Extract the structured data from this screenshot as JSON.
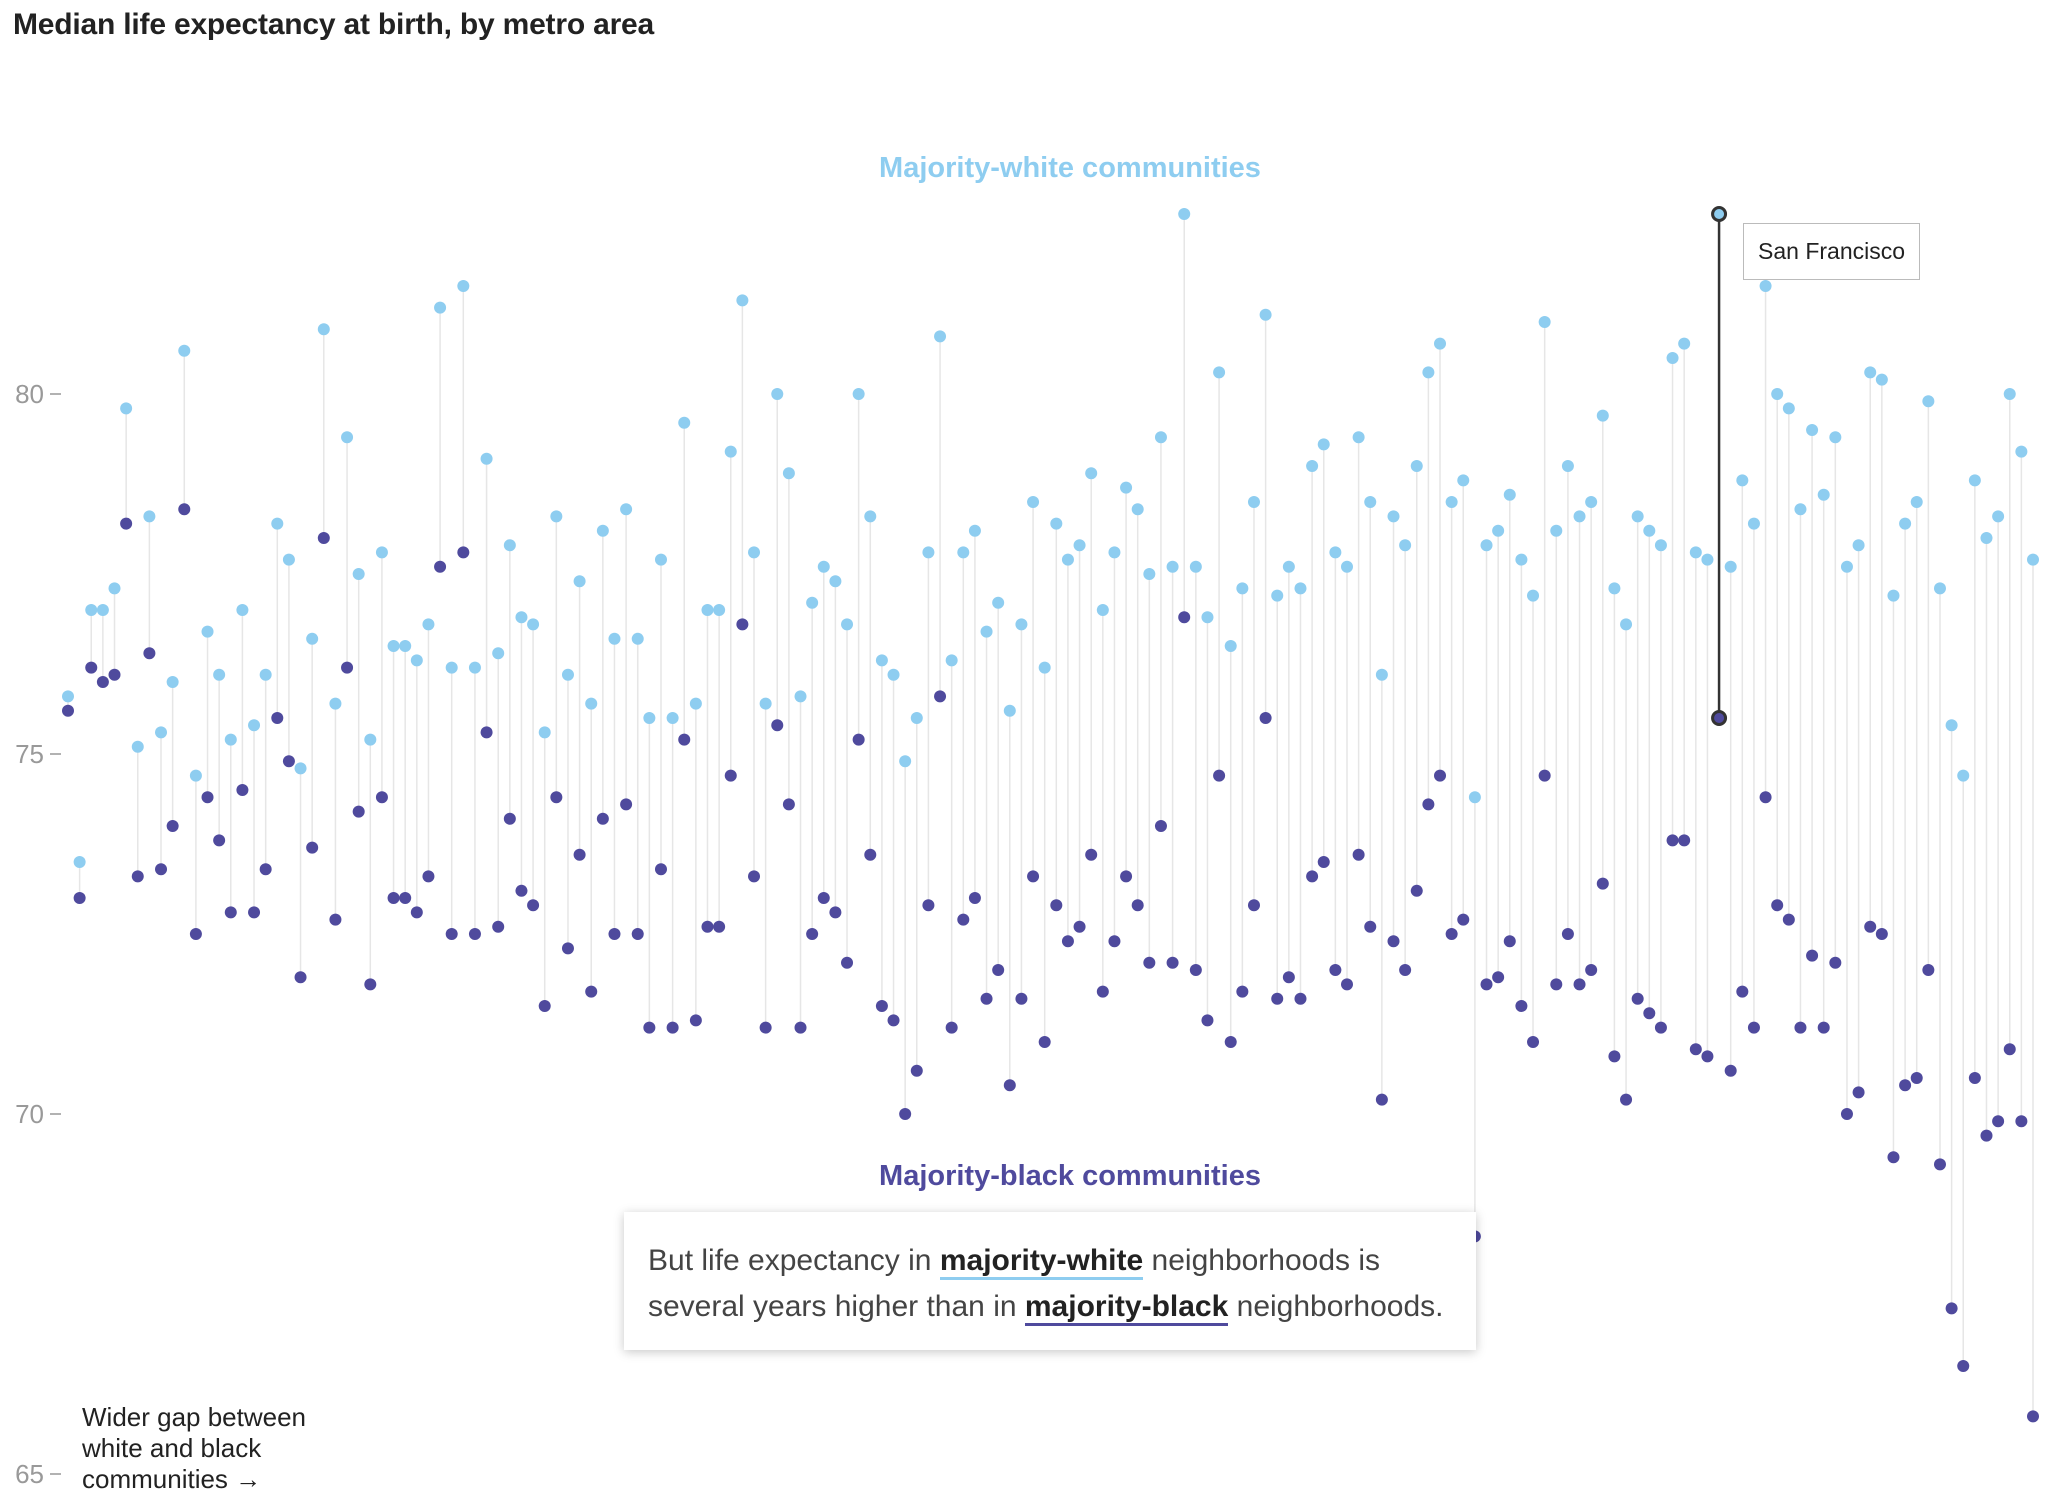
{
  "title": "Median life expectancy at birth, by metro area",
  "labels": {
    "white_group": "Majority-white communities",
    "black_group": "Majority-black communities"
  },
  "callout": {
    "part1": "But life expectancy in ",
    "highlight_white": "majority-white",
    "part2": " neighborhoods is several years higher than in ",
    "highlight_black": "majority-black",
    "part3": " neighborhoods."
  },
  "note": "Wider gap between white and black communities →",
  "tooltip": {
    "label": "San Francisco"
  },
  "colors": {
    "white_series": "#8ecdf0",
    "black_series": "#4f4a9d",
    "connector": "#e6e6e6",
    "highlight_stroke": "#333333",
    "tick": "#999999"
  },
  "chart_data": {
    "type": "scatter",
    "title": "Median life expectancy at birth, by metro area",
    "xlabel": "",
    "ylabel": "",
    "ylim": [
      65,
      84
    ],
    "yticks": [
      65,
      70,
      75,
      80
    ],
    "grid": false,
    "highlight": {
      "name": "San Francisco",
      "index": 142
    },
    "series": [
      {
        "name": "Majority-white communities",
        "values": [
          75.8,
          73.5,
          77.0,
          77.0,
          77.3,
          79.8,
          75.1,
          78.3,
          75.3,
          76.0,
          80.6,
          74.7,
          76.7,
          76.1,
          75.2,
          77.0,
          75.4,
          76.1,
          78.2,
          77.7,
          74.8,
          76.6,
          80.9,
          75.7,
          79.4,
          77.5,
          75.2,
          77.8,
          76.5,
          76.5,
          76.3,
          76.8,
          81.2,
          76.2,
          81.5,
          76.2,
          79.1,
          76.4,
          77.9,
          76.9,
          76.8,
          75.3,
          78.3,
          76.1,
          77.4,
          75.7,
          78.1,
          76.6,
          78.4,
          76.6,
          75.5,
          77.7,
          75.5,
          79.6,
          75.7,
          77.0,
          77.0,
          79.2,
          81.3,
          77.8,
          75.7,
          80.0,
          78.9,
          75.8,
          77.1,
          77.6,
          77.4,
          76.8,
          80.0,
          78.3,
          76.3,
          76.1,
          74.9,
          75.5,
          77.8,
          80.8,
          76.3,
          77.8,
          78.1,
          76.7,
          77.1,
          75.6,
          76.8,
          78.5,
          76.2,
          78.2,
          77.7,
          77.9,
          78.9,
          77.0,
          77.8,
          78.7,
          78.4,
          77.5,
          79.4,
          77.6,
          82.5,
          77.6,
          76.9,
          80.3,
          76.5,
          77.3,
          78.5,
          81.1,
          77.2,
          77.6,
          77.3,
          79.0,
          79.3,
          77.8,
          77.6,
          79.4,
          78.5,
          76.1,
          78.3,
          77.9,
          79.0,
          80.3,
          80.7,
          78.5,
          78.8,
          74.4,
          77.9,
          78.1,
          78.6,
          77.7,
          77.2,
          81.0,
          78.1,
          79.0,
          78.3,
          78.5,
          79.7,
          77.3,
          76.8,
          78.3,
          78.1,
          77.9,
          80.5,
          80.7,
          77.8,
          77.7,
          82.5,
          77.6,
          78.8,
          78.2,
          81.5,
          80.0,
          79.8,
          78.4,
          79.5,
          78.6,
          79.4,
          77.6,
          77.9,
          80.3,
          80.2,
          77.2,
          78.2,
          78.5,
          79.9,
          77.3,
          75.4,
          74.7,
          78.8,
          78.0,
          78.3,
          80.0,
          79.2,
          77.7
        ]
      },
      {
        "name": "Majority-black communities",
        "values": [
          75.6,
          73.0,
          76.2,
          76.0,
          76.1,
          78.2,
          73.3,
          76.4,
          73.4,
          74.0,
          78.4,
          72.5,
          74.4,
          73.8,
          72.8,
          74.5,
          72.8,
          73.4,
          75.5,
          74.9,
          71.9,
          73.7,
          78.0,
          72.7,
          76.2,
          74.2,
          71.8,
          74.4,
          73.0,
          73.0,
          72.8,
          73.3,
          77.6,
          72.5,
          77.8,
          72.5,
          75.3,
          72.6,
          74.1,
          73.1,
          72.9,
          71.5,
          74.4,
          72.3,
          73.6,
          71.7,
          74.1,
          72.5,
          74.3,
          72.5,
          71.2,
          73.4,
          71.2,
          75.2,
          71.3,
          72.6,
          72.6,
          74.7,
          76.8,
          73.3,
          71.2,
          75.4,
          74.3,
          71.2,
          72.5,
          73.0,
          72.8,
          72.1,
          75.2,
          73.6,
          71.5,
          71.3,
          70.0,
          70.6,
          72.9,
          75.8,
          71.2,
          72.7,
          73.0,
          71.6,
          72.0,
          70.4,
          71.6,
          73.3,
          71.0,
          72.9,
          72.4,
          72.6,
          73.6,
          71.7,
          72.4,
          73.3,
          72.9,
          72.1,
          74.0,
          72.1,
          76.9,
          72.0,
          71.3,
          74.7,
          71.0,
          71.7,
          72.9,
          75.5,
          71.6,
          71.9,
          71.6,
          73.3,
          73.5,
          72.0,
          71.8,
          73.6,
          72.6,
          70.2,
          72.4,
          72.0,
          73.1,
          74.3,
          74.7,
          72.5,
          72.7,
          68.3,
          71.8,
          71.9,
          72.4,
          71.5,
          71.0,
          74.7,
          71.8,
          72.5,
          71.8,
          72.0,
          73.2,
          70.8,
          70.2,
          71.6,
          71.4,
          71.2,
          73.8,
          73.8,
          70.9,
          70.8,
          75.5,
          70.6,
          71.7,
          71.2,
          74.4,
          72.9,
          72.7,
          71.2,
          72.2,
          71.2,
          72.1,
          70.0,
          70.3,
          72.6,
          72.5,
          69.4,
          70.4,
          70.5,
          72.0,
          69.3,
          67.3,
          66.5,
          70.5,
          69.7,
          69.9,
          70.9,
          69.9,
          65.8
        ]
      }
    ]
  }
}
